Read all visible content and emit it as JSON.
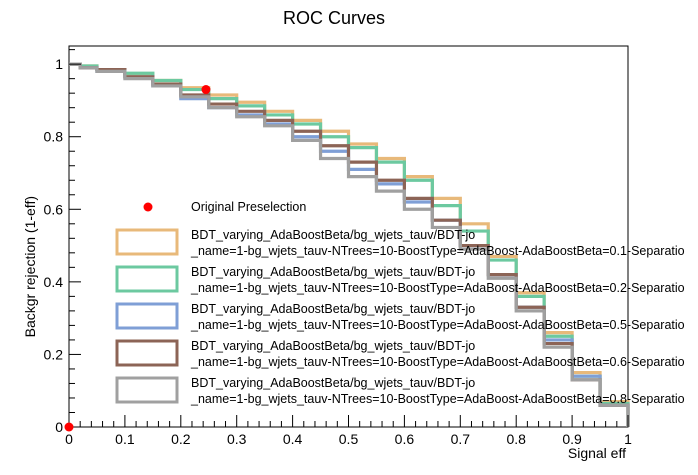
{
  "chart_data": {
    "type": "line",
    "title": "ROC Curves",
    "xlabel": "Signal eff",
    "ylabel": "Backgr rejection (1-eff)",
    "xlim": [
      0,
      1
    ],
    "ylim": [
      0,
      1.05
    ],
    "x_ticks": [
      "0",
      "0.1",
      "0.2",
      "0.3",
      "0.4",
      "0.5",
      "0.6",
      "0.7",
      "0.8",
      "0.9",
      "1"
    ],
    "y_ticks": [
      "0",
      "0.2",
      "0.4",
      "0.6",
      "0.8",
      "1"
    ],
    "grid": false,
    "legend_position": "bottom-left",
    "points": [
      {
        "name": "Original Preselection",
        "color": "#ff0000",
        "x": [
          0.245,
          0.0
        ],
        "y": [
          0.93,
          0.0
        ]
      }
    ],
    "series": [
      {
        "name_line1": "BDT_varying_AdaBoostBeta/bg_wjets_tauv/BDT-jo",
        "name_line2": "_name=1-bg_wjets_tauv-NTrees=10-BoostType=AdaBoost-AdaBoostBeta=0.1-Separatio",
        "color": "#e8b97a",
        "x": [
          0,
          0.02,
          0.05,
          0.1,
          0.15,
          0.2,
          0.25,
          0.3,
          0.35,
          0.4,
          0.45,
          0.5,
          0.55,
          0.6,
          0.65,
          0.7,
          0.75,
          0.8,
          0.85,
          0.9,
          0.95,
          1.0
        ],
        "y": [
          1.0,
          0.995,
          0.985,
          0.97,
          0.955,
          0.935,
          0.915,
          0.895,
          0.87,
          0.845,
          0.815,
          0.78,
          0.74,
          0.69,
          0.63,
          0.56,
          0.47,
          0.37,
          0.26,
          0.15,
          0.07,
          0.0
        ]
      },
      {
        "name_line1": "BDT_varying_AdaBoostBeta/bg_wjets_tauv/BDT-jo",
        "name_line2": "_name=1-bg_wjets_tauv-NTrees=10-BoostType=AdaBoost-AdaBoostBeta=0.2-Separatio",
        "color": "#6cc9a0",
        "x": [
          0,
          0.02,
          0.05,
          0.1,
          0.15,
          0.2,
          0.25,
          0.3,
          0.35,
          0.4,
          0.45,
          0.5,
          0.55,
          0.6,
          0.65,
          0.7,
          0.75,
          0.8,
          0.85,
          0.9,
          0.95,
          1.0
        ],
        "y": [
          1.0,
          0.995,
          0.985,
          0.975,
          0.955,
          0.93,
          0.905,
          0.885,
          0.86,
          0.835,
          0.8,
          0.77,
          0.73,
          0.68,
          0.61,
          0.54,
          0.46,
          0.36,
          0.25,
          0.14,
          0.065,
          0.0
        ]
      },
      {
        "name_line1": "BDT_varying_AdaBoostBeta/bg_wjets_tauv/BDT-jo",
        "name_line2": "_name=1-bg_wjets_tauv-NTrees=10-BoostType=AdaBoost-AdaBoostBeta=0.5-Separatio",
        "color": "#7f9fd6",
        "x": [
          0,
          0.02,
          0.05,
          0.1,
          0.15,
          0.2,
          0.25,
          0.3,
          0.35,
          0.4,
          0.45,
          0.5,
          0.55,
          0.6,
          0.65,
          0.7,
          0.75,
          0.8,
          0.85,
          0.9,
          0.95,
          1.0
        ],
        "y": [
          1.0,
          0.99,
          0.98,
          0.965,
          0.94,
          0.905,
          0.88,
          0.86,
          0.835,
          0.8,
          0.76,
          0.71,
          0.67,
          0.62,
          0.57,
          0.5,
          0.42,
          0.33,
          0.24,
          0.14,
          0.06,
          0.0
        ]
      },
      {
        "name_line1": "BDT_varying_AdaBoostBeta/bg_wjets_tauv/BDT-jo",
        "name_line2": "_name=1-bg_wjets_tauv-NTrees=10-BoostType=AdaBoost-AdaBoostBeta=0.6-Separatio",
        "color": "#8c6456",
        "x": [
          0,
          0.02,
          0.05,
          0.1,
          0.15,
          0.2,
          0.25,
          0.3,
          0.35,
          0.4,
          0.45,
          0.5,
          0.55,
          0.6,
          0.65,
          0.7,
          0.75,
          0.8,
          0.85,
          0.9,
          0.95,
          1.0
        ],
        "y": [
          1.0,
          0.99,
          0.985,
          0.965,
          0.945,
          0.915,
          0.89,
          0.87,
          0.845,
          0.815,
          0.775,
          0.73,
          0.68,
          0.63,
          0.57,
          0.5,
          0.42,
          0.33,
          0.23,
          0.13,
          0.06,
          0.0
        ]
      },
      {
        "name_line1": "BDT_varying_AdaBoostBeta/bg_wjets_tauv/BDT-jo",
        "name_line2": "_name=1-bg_wjets_tauv-NTrees=10-BoostType=AdaBoost-AdaBoostBeta=0.8-Separatio",
        "color": "#a0a0a0",
        "x": [
          0,
          0.02,
          0.05,
          0.1,
          0.15,
          0.2,
          0.25,
          0.3,
          0.35,
          0.4,
          0.45,
          0.5,
          0.55,
          0.6,
          0.65,
          0.7,
          0.75,
          0.8,
          0.85,
          0.9,
          0.95,
          1.0
        ],
        "y": [
          1.0,
          0.99,
          0.98,
          0.96,
          0.94,
          0.91,
          0.88,
          0.855,
          0.83,
          0.79,
          0.74,
          0.69,
          0.65,
          0.6,
          0.55,
          0.49,
          0.41,
          0.32,
          0.22,
          0.13,
          0.06,
          0.0
        ]
      }
    ]
  }
}
